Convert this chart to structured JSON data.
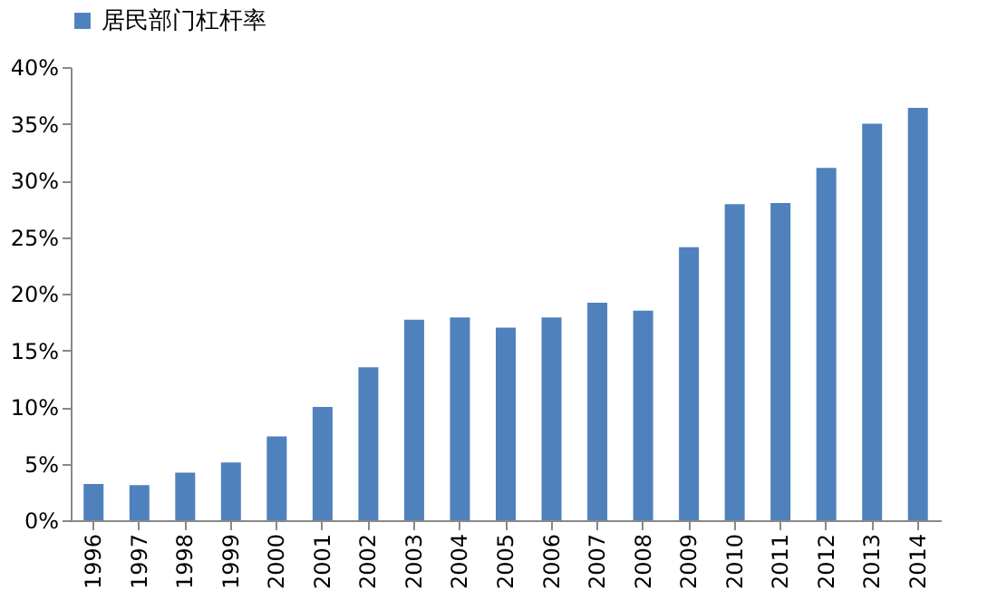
{
  "chart_data": {
    "type": "bar",
    "categories": [
      "1996",
      "1997",
      "1998",
      "1999",
      "2000",
      "2001",
      "2002",
      "2003",
      "2004",
      "2005",
      "2006",
      "2007",
      "2008",
      "2009",
      "2010",
      "2011",
      "2012",
      "2013",
      "2014"
    ],
    "series": [
      {
        "name": "居民部门杠杆率",
        "color": "#4f81bd",
        "values": [
          3.2,
          3.1,
          4.2,
          5.1,
          7.4,
          10.0,
          13.5,
          17.7,
          17.9,
          17.0,
          17.9,
          19.2,
          18.5,
          24.1,
          27.9,
          28.0,
          31.1,
          35.0,
          36.4
        ]
      }
    ],
    "ylim": [
      0,
      40
    ],
    "yticks": [
      {
        "value": 0,
        "label": "0%"
      },
      {
        "value": 5,
        "label": "5%"
      },
      {
        "value": 10,
        "label": "10%"
      },
      {
        "value": 15,
        "label": "15%"
      },
      {
        "value": 20,
        "label": "20%"
      },
      {
        "value": 25,
        "label": "25%"
      },
      {
        "value": 30,
        "label": "30%"
      },
      {
        "value": 35,
        "label": "35%"
      },
      {
        "value": 40,
        "label": "40%"
      }
    ],
    "grid": false,
    "legend": "top"
  }
}
